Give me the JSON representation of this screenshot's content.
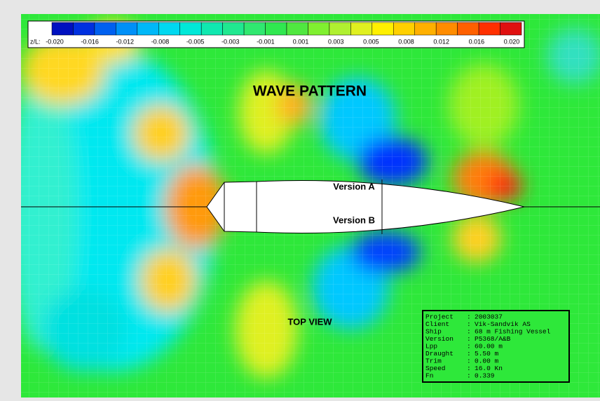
{
  "colorbar": {
    "prefix": "z/L:",
    "labels": [
      "-0.020",
      "-0.016",
      "-0.012",
      "-0.008",
      "-0.005",
      "-0.003",
      "-0.001",
      "0.001",
      "0.003",
      "0.005",
      "0.008",
      "0.012",
      "0.016",
      "0.020"
    ]
  },
  "title": "WAVE PATTERN",
  "hull_labels": [
    "Version A",
    "Version B"
  ],
  "view_label": "TOP VIEW",
  "info": {
    "separator": ":",
    "rows": [
      [
        "Project",
        "2003037"
      ],
      [
        "Client",
        "Vik-Sandvik AS"
      ],
      [
        "Ship",
        "68 m Fishing Vessel"
      ],
      [
        "Version",
        "P5368/A&B"
      ],
      [
        "Lpp",
        "60.00 m"
      ],
      [
        "Draught",
        "5.50 m"
      ],
      [
        "Trim",
        "0.00 m"
      ],
      [
        "Speed",
        "16.0 Kn"
      ],
      [
        "Fn",
        "0.339"
      ]
    ]
  }
}
